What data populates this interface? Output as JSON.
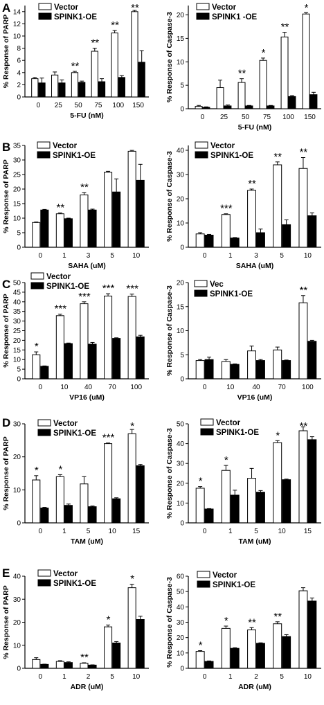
{
  "colors": {
    "vector": "#ffffff",
    "oe": "#000000",
    "axis": "#000000"
  },
  "panels": [
    "A",
    "B",
    "C",
    "D",
    "E"
  ],
  "chart_data": [
    {
      "id": "A-left",
      "panel": "A",
      "type": "bar",
      "xlabel": "5-FU (nM)",
      "ylabel": "% Response of PARP",
      "ylim": [
        0,
        15
      ],
      "yticks": [
        0,
        2,
        4,
        6,
        8,
        10,
        12,
        14
      ],
      "categories": [
        "0",
        "25",
        "50",
        "75",
        "100",
        "150"
      ],
      "legend": [
        "Vector",
        "SPINK1-OE"
      ],
      "series": [
        {
          "name": "Vector",
          "values": [
            3.0,
            3.6,
            4.0,
            7.5,
            10.5,
            14.0
          ],
          "err": [
            0.2,
            0.5,
            0.2,
            0.5,
            0.4,
            0.2
          ]
        },
        {
          "name": "SPINK1-OE",
          "values": [
            2.3,
            2.3,
            2.4,
            2.5,
            3.2,
            5.7
          ],
          "err": [
            0.8,
            0.5,
            0.2,
            0.5,
            0.3,
            1.9
          ]
        }
      ],
      "annotations": [
        "",
        "",
        "**",
        "**",
        "**",
        "**"
      ]
    },
    {
      "id": "A-right",
      "panel": "A",
      "type": "bar",
      "xlabel": "5-FU (nM)",
      "ylabel": "% Response of Caspase-3",
      "ylim": [
        0,
        22
      ],
      "yticks": [
        0,
        5,
        10,
        15,
        20
      ],
      "categories": [
        "0",
        "25",
        "50",
        "75",
        "100",
        "150"
      ],
      "legend": [
        "Vector",
        "SPINK1 -OE"
      ],
      "series": [
        {
          "name": "Vector",
          "values": [
            0.5,
            4.5,
            5.6,
            10.3,
            15.3,
            20.2
          ],
          "err": [
            0.2,
            1.6,
            0.8,
            0.5,
            1.0,
            0.3
          ]
        },
        {
          "name": "SPINK1 -OE",
          "values": [
            0.3,
            0.6,
            0.6,
            0.6,
            2.6,
            3.0
          ],
          "err": [
            0.1,
            0.2,
            0.1,
            0.1,
            0.2,
            0.5
          ]
        }
      ],
      "annotations": [
        "",
        "",
        "**",
        "*",
        "**",
        "*"
      ]
    },
    {
      "id": "B-left",
      "panel": "B",
      "type": "bar",
      "xlabel": "SAHA (uM)",
      "ylabel": "% Response of PARP",
      "ylim": [
        0,
        35
      ],
      "yticks": [
        0,
        5,
        10,
        15,
        20,
        25,
        30,
        35
      ],
      "categories": [
        "0",
        "1",
        "3",
        "5",
        "10"
      ],
      "legend": [
        "Vector",
        "SPINK1-OE"
      ],
      "series": [
        {
          "name": "Vector",
          "values": [
            8.5,
            11.5,
            18.0,
            25.8,
            33.0
          ],
          "err": [
            0.2,
            0.3,
            0.8,
            0.3,
            0.3
          ]
        },
        {
          "name": "SPINK1-OE",
          "values": [
            12.8,
            9.8,
            12.8,
            19.0,
            23.0
          ],
          "err": [
            0.2,
            0.2,
            0.3,
            4.5,
            5.5
          ]
        }
      ],
      "annotations": [
        "",
        "**",
        "**",
        "",
        ""
      ]
    },
    {
      "id": "B-right",
      "panel": "B",
      "type": "bar",
      "xlabel": "SAHA (uM)",
      "ylabel": "% Response of Caspase-3",
      "ylim": [
        0,
        42
      ],
      "yticks": [
        0,
        10,
        20,
        30,
        40
      ],
      "categories": [
        "0",
        "1",
        "3",
        "5",
        "10"
      ],
      "legend": [
        "Vector",
        "SPINK1-OE"
      ],
      "series": [
        {
          "name": "Vector",
          "values": [
            5.5,
            13.5,
            23.5,
            34.0,
            32.5
          ],
          "err": [
            0.5,
            0.3,
            0.5,
            1.2,
            4.5
          ]
        },
        {
          "name": "SPINK1-OE",
          "values": [
            5.0,
            3.8,
            6.0,
            9.3,
            13.0
          ],
          "err": [
            0.3,
            0.2,
            1.5,
            2.0,
            1.2
          ]
        }
      ],
      "annotations": [
        "",
        "***",
        "**",
        "**",
        "**"
      ]
    },
    {
      "id": "C-left",
      "panel": "C",
      "type": "bar",
      "xlabel": "VP16 (uM)",
      "ylabel": "% Response of PARP",
      "ylim": [
        0,
        50
      ],
      "yticks": [
        0,
        5,
        10,
        15,
        20,
        25,
        30,
        35,
        40,
        45,
        50
      ],
      "categories": [
        "0",
        "10",
        "40",
        "70",
        "100"
      ],
      "legend": [
        "Vector",
        "SPINK1-OE"
      ],
      "series": [
        {
          "name": "Vector",
          "values": [
            12.5,
            32.8,
            39.0,
            43.0,
            42.8
          ],
          "err": [
            1.5,
            0.8,
            1.0,
            1.2,
            1.2
          ]
        },
        {
          "name": "SPINK1-OE",
          "values": [
            6.5,
            18.3,
            18.0,
            21.0,
            21.8
          ],
          "err": [
            0.2,
            0.3,
            0.9,
            0.3,
            0.8
          ]
        }
      ],
      "annotations": [
        "*",
        "***",
        "***",
        "***",
        "***"
      ]
    },
    {
      "id": "C-right",
      "panel": "C",
      "type": "bar",
      "xlabel": "VP16 (uM)",
      "ylabel": "% Response of Caspase-3",
      "ylim": [
        0,
        20
      ],
      "yticks": [
        0,
        5,
        10,
        15,
        20
      ],
      "categories": [
        "0",
        "10",
        "40",
        "70",
        "100"
      ],
      "legend": [
        "Vec",
        "SPINK1-OE"
      ],
      "series": [
        {
          "name": "Vec",
          "values": [
            3.8,
            3.6,
            5.8,
            6.0,
            15.8
          ],
          "err": [
            0.2,
            0.4,
            1.0,
            0.6,
            1.5
          ]
        },
        {
          "name": "SPINK1-OE",
          "values": [
            4.0,
            3.0,
            3.8,
            3.8,
            7.8
          ],
          "err": [
            0.5,
            0.1,
            0.2,
            0.1,
            0.2
          ]
        }
      ],
      "annotations": [
        "",
        "",
        "",
        "",
        "**"
      ]
    },
    {
      "id": "D-left",
      "panel": "D",
      "type": "bar",
      "xlabel": "TAM (uM)",
      "ylabel": "% Response of PARP",
      "ylim": [
        0,
        30
      ],
      "yticks": [
        0,
        10,
        20,
        30
      ],
      "categories": [
        "0",
        "1",
        "5",
        "10",
        "15"
      ],
      "legend": [
        "Vector",
        "SPINK1-OE"
      ],
      "series": [
        {
          "name": "Vector",
          "values": [
            13.0,
            14.0,
            11.8,
            24.0,
            27.0
          ],
          "err": [
            1.3,
            0.6,
            2.2,
            0.2,
            1.3
          ]
        },
        {
          "name": "SPINK1-OE",
          "values": [
            4.5,
            5.3,
            4.9,
            7.3,
            17.3
          ],
          "err": [
            0.2,
            0.4,
            0.2,
            0.3,
            0.4
          ]
        }
      ],
      "annotations": [
        "*",
        "*",
        "",
        "***",
        "*"
      ]
    },
    {
      "id": "D-right",
      "panel": "D",
      "type": "bar",
      "xlabel": "TAM (uM)",
      "ylabel": "% Response of Caspase-3",
      "ylim": [
        0,
        50
      ],
      "yticks": [
        0,
        10,
        20,
        30,
        40,
        50
      ],
      "categories": [
        "0",
        "1",
        "5",
        "10",
        "15"
      ],
      "legend": [
        "Vector",
        "SPINK1-OE"
      ],
      "series": [
        {
          "name": "Vector",
          "values": [
            17.5,
            26.5,
            22.5,
            40.5,
            46.5
          ],
          "err": [
            0.8,
            2.5,
            5.0,
            1.0,
            2.0
          ]
        },
        {
          "name": "SPINK1-OE",
          "values": [
            7.0,
            14.0,
            15.5,
            21.8,
            42.0
          ],
          "err": [
            0.2,
            2.5,
            0.8,
            0.3,
            1.5
          ]
        }
      ],
      "annotations": [
        "*",
        "*",
        "",
        "*",
        "**"
      ]
    },
    {
      "id": "E-left",
      "panel": "E",
      "type": "bar",
      "xlabel": "ADR (uM)",
      "ylabel": "% Response of PARP",
      "ylim": [
        0,
        40
      ],
      "yticks": [
        0,
        10,
        20,
        30,
        40
      ],
      "categories": [
        "0",
        "1",
        "2",
        "5",
        "10"
      ],
      "legend": [
        "Vector",
        "SPINK1-OE"
      ],
      "series": [
        {
          "name": "Vector",
          "values": [
            3.8,
            3.0,
            2.2,
            18.0,
            35.0
          ],
          "err": [
            0.8,
            0.3,
            0.2,
            0.8,
            1.5
          ]
        },
        {
          "name": "SPINK1-OE",
          "values": [
            1.7,
            2.5,
            1.4,
            11.0,
            21.2
          ],
          "err": [
            0.1,
            0.3,
            0.1,
            0.6,
            1.4
          ]
        }
      ],
      "annotations": [
        "",
        "",
        "**",
        "*",
        "*"
      ]
    },
    {
      "id": "E-right",
      "panel": "E",
      "type": "bar",
      "xlabel": "ADR (uM)",
      "ylabel": "% Response of Caspase-3",
      "ylim": [
        0,
        60
      ],
      "yticks": [
        0,
        10,
        20,
        30,
        40,
        50,
        60
      ],
      "categories": [
        "0",
        "1",
        "2",
        "5",
        "10"
      ],
      "legend": [
        "Vector",
        "SPINK1-OE"
      ],
      "series": [
        {
          "name": "Vector",
          "values": [
            11.0,
            26.0,
            25.0,
            29.0,
            50.5
          ],
          "err": [
            0.5,
            1.5,
            1.5,
            1.3,
            2.0
          ]
        },
        {
          "name": "SPINK1-OE",
          "values": [
            4.5,
            13.0,
            16.3,
            20.7,
            43.8
          ],
          "err": [
            0.3,
            0.4,
            0.3,
            1.2,
            2.0
          ]
        }
      ],
      "annotations": [
        "*",
        "*",
        "**",
        "**",
        ""
      ]
    }
  ]
}
